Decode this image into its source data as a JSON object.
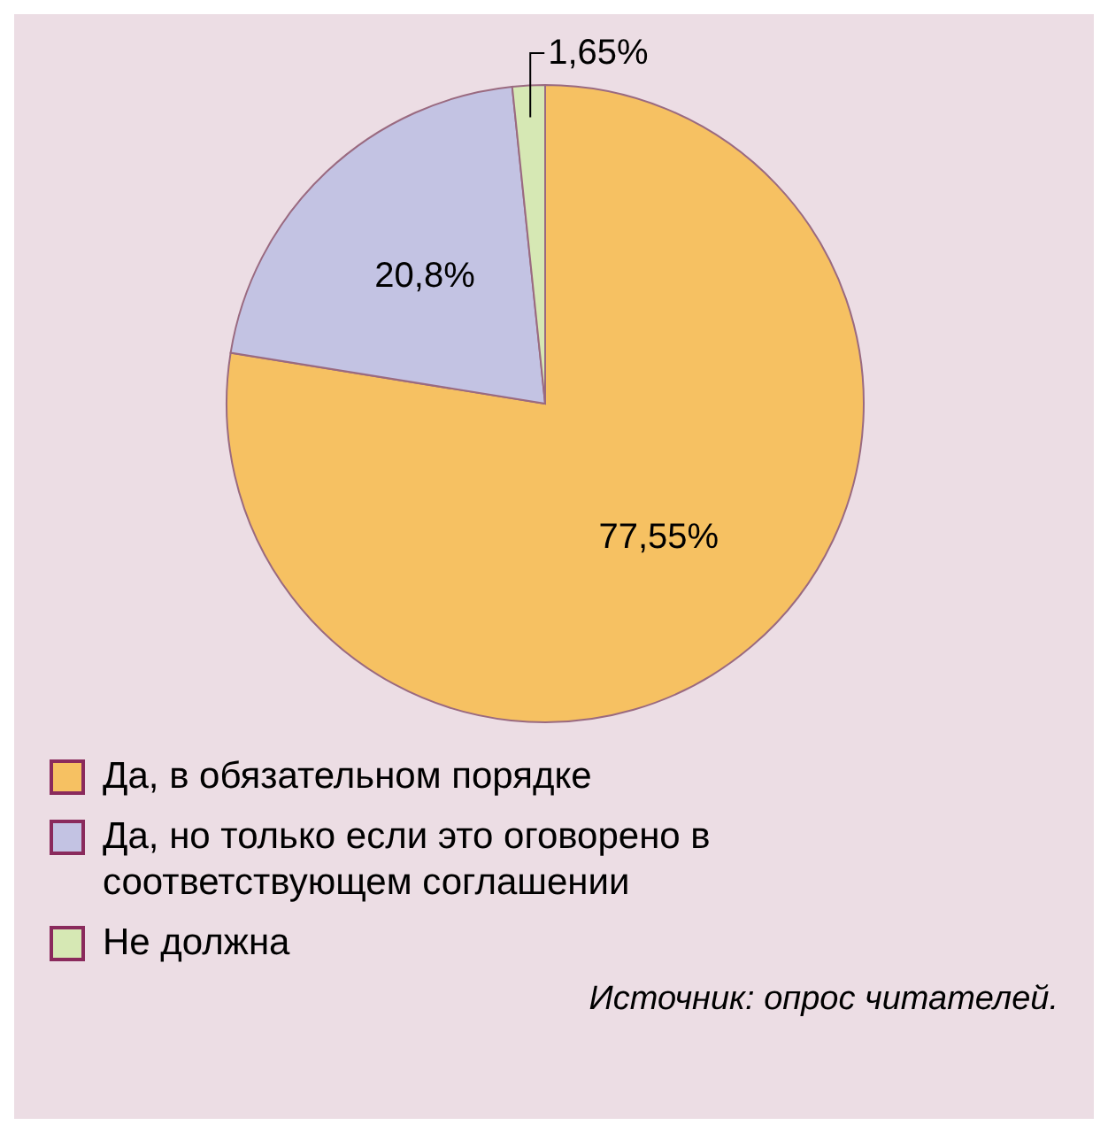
{
  "chart_data": {
    "type": "pie",
    "categories": [
      "Да, в обязательном порядке",
      "Да, но только если это оговорено в соответствующем соглашении",
      "Не должна"
    ],
    "values": [
      77.55,
      20.8,
      1.65
    ],
    "colors": [
      "#f6c162",
      "#c3c3e3",
      "#d6e8b4"
    ],
    "value_labels": [
      "77,55%",
      "20,8%",
      "1,65%"
    ],
    "legend": "bottom",
    "annotations": [
      "Источник: опрос читателей."
    ]
  }
}
